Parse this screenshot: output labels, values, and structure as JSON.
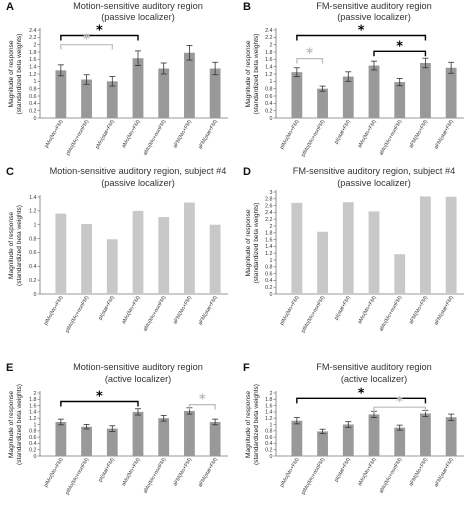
{
  "chart_data": [
    {
      "letter": "A",
      "type": "bar",
      "title": [
        "Motion-sensitive auditory region",
        "(passive localizer)"
      ],
      "ylabel": [
        "Magnitude of response",
        "(standardized beta weights)"
      ],
      "categories": [
        "pMo(Mo+FM)",
        "pMo(Mo+nonFM)",
        "pMo(stat+FM)",
        "aMo(Mo+FM)",
        "aMo(Mo+nonFM)",
        "aFM(Mo+FM)",
        "aFM(stat+FM)"
      ],
      "values": [
        1.3,
        1.05,
        1.0,
        1.63,
        1.35,
        1.78,
        1.35
      ],
      "errors": [
        0.15,
        0.13,
        0.13,
        0.2,
        0.15,
        0.2,
        0.17
      ],
      "bar_color": "#999999",
      "ylim": [
        0,
        2.4
      ],
      "yticks": [
        "0",
        "0.2",
        "0.4",
        "0.6",
        "0.8",
        "1",
        "1.2",
        "1.4",
        "1.6",
        "1.8",
        "2",
        "2.2",
        "2.4"
      ],
      "brackets": [
        {
          "from": 0,
          "to": 3,
          "y": 2.25,
          "color": "#000000",
          "symbol": "*"
        },
        {
          "from": 0,
          "to": 2,
          "y": 2.0,
          "color": "#bbbbbb",
          "symbol": "*"
        }
      ]
    },
    {
      "letter": "B",
      "type": "bar",
      "title": [
        "FM-sensitive auditory region",
        "(passive localizer)"
      ],
      "ylabel": [
        "Magnitude of response",
        "(standardized beta weights)"
      ],
      "categories": [
        "pIMo(Mo+FM)",
        "pIMo(Mo+nonFM)",
        "pI(stat+FM)",
        "aMo(Mo+FM)",
        "aMo(Mo+nonFM)",
        "aFM(Mo+FM)",
        "aFM(stat+FM)"
      ],
      "values": [
        1.25,
        0.8,
        1.13,
        1.43,
        0.98,
        1.5,
        1.37
      ],
      "errors": [
        0.12,
        0.07,
        0.13,
        0.12,
        0.1,
        0.13,
        0.15
      ],
      "bar_color": "#999999",
      "ylim": [
        0,
        2.4
      ],
      "yticks": [
        "0",
        "0.2",
        "0.4",
        "0.6",
        "0.8",
        "1",
        "1.2",
        "1.4",
        "1.6",
        "1.8",
        "2",
        "2.2",
        "2.4"
      ],
      "brackets": [
        {
          "from": 0,
          "to": 5,
          "y": 2.25,
          "color": "#000000",
          "symbol": "*"
        },
        {
          "from": 3,
          "to": 5,
          "y": 1.82,
          "color": "#000000",
          "symbol": "*"
        },
        {
          "from": 0,
          "to": 1,
          "y": 1.62,
          "color": "#bbbbbb",
          "symbol": "*"
        }
      ]
    },
    {
      "letter": "C",
      "type": "bar",
      "title": [
        "Motion-sensitive auditory region, subject #4",
        "(passive localizer)"
      ],
      "ylabel": [
        "Magnitude of response",
        "(standardized beta weights)"
      ],
      "categories": [
        "pIMo(Mo+FM)",
        "pIMo(Mo+nonFM)",
        "pI(stat+FM)",
        "aMo(Mo+FM)",
        "aMo(Mo+nonFM)",
        "aFM(Mo+FM)",
        "aFM(stat+FM)"
      ],
      "values": [
        1.16,
        1.01,
        0.79,
        1.2,
        1.11,
        1.32,
        1.0
      ],
      "bar_color": "#c8c8c8",
      "ylim": [
        0,
        1.4
      ],
      "yticks": [
        "0",
        "0.2",
        "0.4",
        "0.6",
        "0.8",
        "1",
        "1.2",
        "1.4"
      ]
    },
    {
      "letter": "D",
      "type": "bar",
      "title": [
        "FM-sensitive auditory region, subject #4",
        "(passive localizer)"
      ],
      "ylabel": [
        "Magnitude of response",
        "(standardized beta weights)"
      ],
      "categories": [
        "pIMo(Mo+FM)",
        "pIMo(Mo+nonFM)",
        "pI(stat+FM)",
        "aMo(Mo+FM)",
        "aMo(Mo+nonFM)",
        "aFM(Mo+FM)",
        "aFM(stat+FM)"
      ],
      "values": [
        2.68,
        1.83,
        2.7,
        2.43,
        1.17,
        2.87,
        2.86
      ],
      "bar_color": "#c8c8c8",
      "ylim": [
        0,
        3
      ],
      "yticks": [
        "0",
        "0.2",
        "0.4",
        "0.6",
        "0.8",
        "1",
        "1.2",
        "1.4",
        "1.6",
        "1.8",
        "2",
        "2.2",
        "2.4",
        "2.6",
        "2.8",
        "3"
      ]
    },
    {
      "letter": "E",
      "type": "bar",
      "title": [
        "Motion-sensitive auditory region",
        "(active localizer)"
      ],
      "ylabel": [
        "Magnitude of response",
        "(standardized beta weights)"
      ],
      "categories": [
        "pIMo(Mo+FM)",
        "pIMo(Mo+nonFM)",
        "pI(stat+FM)",
        "aMo(Mo+FM)",
        "aMo(Mo+nonFM)",
        "aFM(Mo+FM)",
        "aFM(stat+FM)"
      ],
      "values": [
        1.08,
        0.93,
        0.87,
        1.4,
        1.2,
        1.43,
        1.08
      ],
      "errors": [
        0.09,
        0.07,
        0.09,
        0.1,
        0.09,
        0.1,
        0.09
      ],
      "bar_color": "#999999",
      "ylim": [
        0,
        2
      ],
      "yticks": [
        "0",
        "0.2",
        "0.4",
        "0.6",
        "0.8",
        "1",
        "1.2",
        "1.4",
        "1.6",
        "1.8",
        "2"
      ],
      "brackets": [
        {
          "from": 0,
          "to": 3,
          "y": 1.73,
          "color": "#000000",
          "symbol": "*"
        },
        {
          "from": 5,
          "to": 6,
          "y": 1.63,
          "color": "#bbbbbb",
          "symbol": "*"
        }
      ]
    },
    {
      "letter": "F",
      "type": "bar",
      "title": [
        "FM-sensitive auditory region",
        "(active localizer)"
      ],
      "ylabel": [
        "Magnitude of response",
        "(standardized beta weights)"
      ],
      "categories": [
        "pIMo(Mo+FM)",
        "pIMo(Mo+nonFM)",
        "pI(stat+FM)",
        "aMo(Mo+FM)",
        "aMo(Mo+nonFM)",
        "aFM(Mo+FM)",
        "aFM(stat+FM)"
      ],
      "values": [
        1.12,
        0.78,
        1.0,
        1.32,
        0.9,
        1.35,
        1.23
      ],
      "errors": [
        0.1,
        0.07,
        0.09,
        0.1,
        0.08,
        0.1,
        0.1
      ],
      "bar_color": "#999999",
      "ylim": [
        0,
        2
      ],
      "yticks": [
        "0",
        "0.2",
        "0.4",
        "0.6",
        "0.8",
        "1",
        "1.2",
        "1.4",
        "1.6",
        "1.8",
        "2"
      ],
      "brackets": [
        {
          "from": 0,
          "to": 5,
          "y": 1.83,
          "color": "#000000",
          "symbol": "*"
        },
        {
          "from": 3,
          "to": 5,
          "y": 1.55,
          "color": "#bbbbbb",
          "symbol": "*"
        }
      ]
    }
  ]
}
